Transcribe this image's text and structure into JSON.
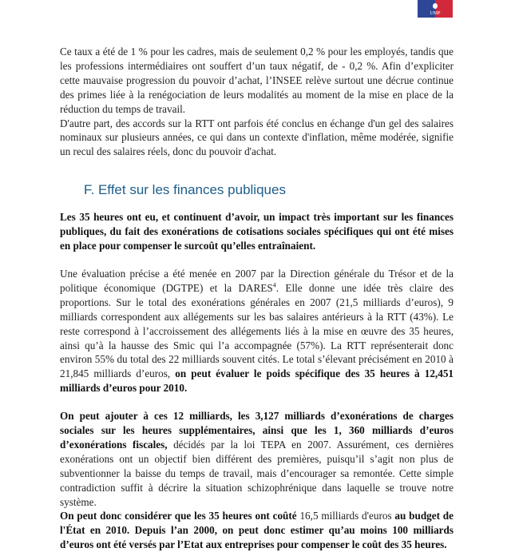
{
  "logo": {
    "text": "UMP",
    "colors": {
      "left": "#2d4796",
      "right": "#d2283c"
    }
  },
  "para1": "Ce taux a été de 1 % pour les cadres, mais de seulement 0,2 % pour les employés, tandis que les professions intermédiaires ont souffert d’un taux négatif, de - 0,2 %. Afin d’expliciter cette mauvaise progression du pouvoir d’achat, l’INSEE relève surtout une décrue continue des primes liée à la renégociation de leurs modalités au moment de la mise en place de la réduction du temps de travail.",
  "para2": "D'autre part, des accords sur la RTT ont parfois été conclus en échange d'un gel des salaires nominaux sur plusieurs années, ce qui dans un contexte d'inflation, même modérée, signifie un recul des salaires réels, donc du pouvoir d'achat.",
  "heading": "F. Effet sur les finances publiques",
  "heading_color": "#1d5e8a",
  "para3": "Les 35 heures ont eu, et continuent d’avoir, un impact très important sur les finances publiques, du fait des exonérations de cotisations sociales spécifiques qui ont été mises en place pour compenser le surcoût qu’elles entraînaient.",
  "para4": {
    "a": "Une évaluation précise a été menée en 2007 par la Direction générale du Trésor et de la politique économique (DGTPE) et la DARES",
    "footnote": "4",
    "b": ". Elle donne une idée très claire des proportions. Sur le total des exonérations générales en 2007 (21,5 milliards d’euros), 9 milliards correspondent aux allégements sur les bas salaires antérieurs à la RTT (43%). Le reste correspond à l’accroissement des allégements liés à la mise en œuvre des 35 heures, ainsi qu’à la hausse des Smic qui l’a accompagnée (57%). La RTT représenterait donc environ 55% du total des 22 milliards souvent cités. Le total s’élevant précisément en 2010 à 21,845 milliards d’euros, ",
    "bold": "on peut évaluer le poids spécifique des 35 heures à 12,451 milliards d’euros pour 2010."
  },
  "para5": {
    "bold": "On peut ajouter à ces 12 milliards, les 3,127 milliards d’exonérations de charges sociales sur les heures supplémentaires, ainsi que les 1, 360 milliards d’euros d’exonérations fiscales,",
    "rest": " décidés par la loi TEPA en 2007. Assurément, ces dernières exonérations ont un objectif bien différent des premières, puisqu’il s’agit non plus de subventionner la baisse du temps de travail, mais d’encourager sa remontée. Cette simple contradiction suffit à décrire la situation schizophrénique dans laquelle se trouve notre système."
  },
  "para6": {
    "bold1": "On peut donc considérer que les 35 heures ont coûté",
    "normal": " 16,5 milliards d'euros ",
    "bold2": "au budget de l'État en 2010. Depuis l’an 2000, on peut donc estimer qu’au moins 100 milliards d’euros ont été versés par l’Etat aux entreprises pour compenser le coût des 35 heures."
  }
}
